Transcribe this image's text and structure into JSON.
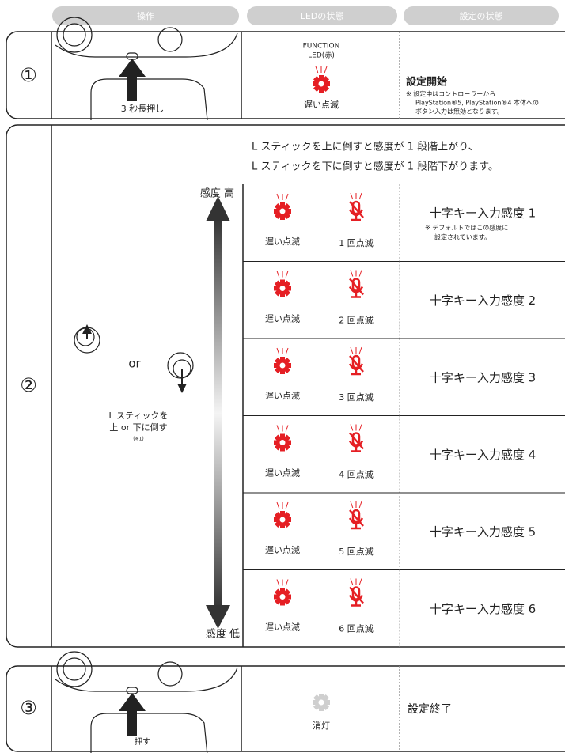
{
  "header": {
    "columns": [
      "操作",
      "LEDの状態",
      "設定の状態"
    ]
  },
  "steps": [
    {
      "number": "①",
      "action": "3 秒長押し",
      "led_label": [
        "FUNCTION",
        "LED(赤)"
      ],
      "led_state": "遅い点滅",
      "status": "設定開始",
      "note": [
        "※ 設定中はコントローラーから",
        "PlayStation®5, PlayStation®4 本体への",
        "ボタン入力は無効となります。"
      ]
    },
    {
      "number": "②",
      "intro": [
        "L スティックを上に倒すと感度が 1 段階上がり、",
        "L スティックを下に倒すと感度が 1 段階下がります。"
      ],
      "high": "感度 高",
      "low": "感度 低",
      "or": "or",
      "action": [
        "L スティックを",
        "上 or 下に倒す"
      ],
      "footnote": "(※1)",
      "rows": [
        {
          "led": "遅い点滅",
          "mic": "1 回点滅",
          "status": "十字キー入力感度 1",
          "note": [
            "※ デフォルトではこの感度に",
            "設定されています。"
          ]
        },
        {
          "led": "遅い点滅",
          "mic": "2 回点滅",
          "status": "十字キー入力感度 2"
        },
        {
          "led": "遅い点滅",
          "mic": "3 回点滅",
          "status": "十字キー入力感度 3"
        },
        {
          "led": "遅い点滅",
          "mic": "4 回点滅",
          "status": "十字キー入力感度 4"
        },
        {
          "led": "遅い点滅",
          "mic": "5 回点滅",
          "status": "十字キー入力感度 5"
        },
        {
          "led": "遅い点滅",
          "mic": "6 回点滅",
          "status": "十字キー入力感度 6"
        }
      ]
    },
    {
      "number": "③",
      "action": "押す",
      "led_state": "消灯",
      "status": "設定終了"
    }
  ]
}
